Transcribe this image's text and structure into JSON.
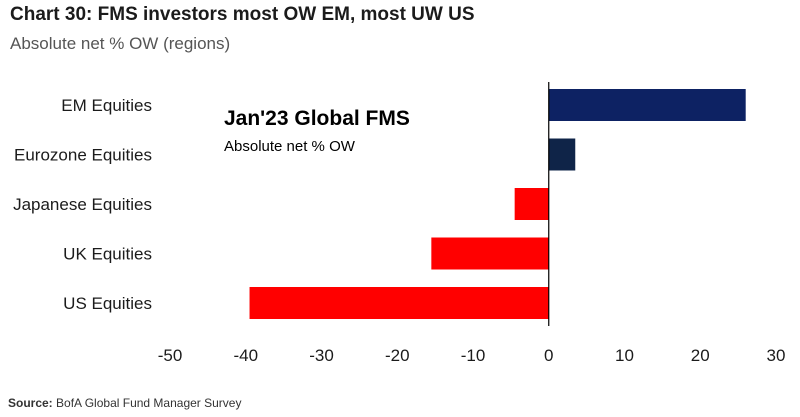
{
  "chart_data": {
    "type": "bar",
    "orientation": "horizontal",
    "title": "Chart 30: FMS investors most OW EM, most UW US",
    "subtitle": "Absolute net % OW (regions)",
    "annotation_title": "Jan'23 Global FMS",
    "annotation_subtitle": "Absolute net % OW",
    "categories": [
      "EM Equities",
      "Eurozone Equities",
      "Japanese Equities",
      "UK Equities",
      "US Equities"
    ],
    "values": [
      26,
      3.5,
      -4.5,
      -15.5,
      -39.5
    ],
    "bar_colors": [
      "#0d2263",
      "#0f2448",
      "#ff0000",
      "#ff0000",
      "#ff0000"
    ],
    "xlim": [
      -50,
      30
    ],
    "xticks": [
      -50,
      -40,
      -30,
      -20,
      -10,
      0,
      10,
      20,
      30
    ],
    "xlabel": "",
    "ylabel": "",
    "grid": false
  },
  "source": {
    "label": "Source:",
    "text": "BofA Global Fund Manager Survey"
  }
}
